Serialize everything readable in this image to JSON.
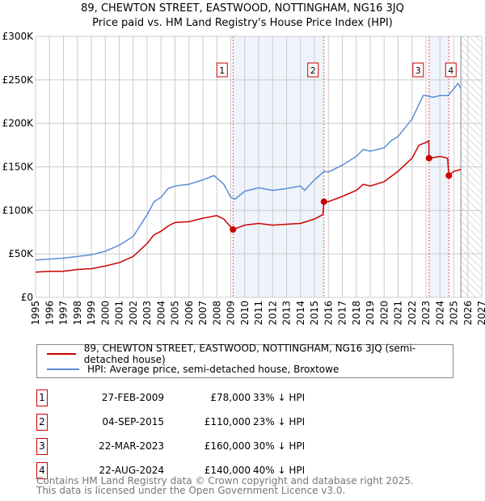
{
  "title": "89, CHEWTON STREET, EASTWOOD, NOTTINGHAM, NG16 3JQ",
  "subtitle": "Price paid vs. HM Land Registry's House Price Index (HPI)",
  "chart_data": {
    "type": "line",
    "xlim": [
      1995,
      2027
    ],
    "ylim": [
      0,
      300000
    ],
    "ytick_labels": [
      "£0",
      "£50K",
      "£100K",
      "£150K",
      "£200K",
      "£250K",
      "£300K"
    ],
    "yticks": [
      0,
      50000,
      100000,
      150000,
      200000,
      250000,
      300000
    ],
    "xticks": [
      1995,
      1996,
      1997,
      1998,
      1999,
      2000,
      2001,
      2002,
      2003,
      2004,
      2005,
      2006,
      2007,
      2008,
      2009,
      2010,
      2011,
      2012,
      2013,
      2014,
      2015,
      2016,
      2017,
      2018,
      2019,
      2020,
      2021,
      2022,
      2023,
      2024,
      2025,
      2026,
      2027
    ],
    "grid": true,
    "forecast_from": 2025.5,
    "shaded_ranges": [
      [
        2009.16,
        2015.68
      ],
      [
        2023.22,
        2024.64
      ]
    ],
    "series": [
      {
        "name": "89, CHEWTON STREET, EASTWOOD, NOTTINGHAM, NG16 3JQ (semi-detached house)",
        "color": "#cc0000",
        "x": [
          1995,
          1996,
          1997,
          1998,
          1999,
          2000,
          2001,
          2002,
          2003,
          2003.5,
          2004,
          2004.5,
          2005,
          2006,
          2007,
          2008,
          2008.5,
          2009.16,
          2010,
          2011,
          2012,
          2013,
          2014,
          2015,
          2015.6,
          2015.68,
          2016,
          2017,
          2018,
          2018.5,
          2019,
          2020,
          2021,
          2022,
          2022.5,
          2023,
          2023.2,
          2023.22,
          2024,
          2024.55,
          2024.64,
          2025,
          2025.5
        ],
        "y": [
          29000,
          30000,
          30000,
          32000,
          33000,
          36000,
          40000,
          47000,
          62000,
          72000,
          76000,
          82000,
          86000,
          87000,
          91000,
          94000,
          90000,
          78000,
          83000,
          85000,
          83000,
          84000,
          85000,
          90000,
          95000,
          110000,
          110000,
          116000,
          123000,
          130000,
          128000,
          133000,
          145000,
          160000,
          175000,
          178000,
          180000,
          160000,
          162000,
          160000,
          140000,
          145000,
          147000
        ]
      },
      {
        "name": "HPI: Average price, semi-detached house, Broxtowe",
        "color": "#5b8dd6",
        "x": [
          1995,
          1996,
          1997,
          1998,
          1999,
          2000,
          2001,
          2002,
          2003,
          2003.5,
          2004,
          2004.5,
          2005,
          2006,
          2007,
          2007.8,
          2008.5,
          2009,
          2009.3,
          2010,
          2011,
          2012,
          2013,
          2014,
          2014.3,
          2015,
          2015.7,
          2016,
          2017,
          2018,
          2018.5,
          2019,
          2020,
          2020.5,
          2021,
          2021.5,
          2022,
          2022.5,
          2022.8,
          2023,
          2023.5,
          2024,
          2024.6,
          2025,
          2025.3,
          2025.5
        ],
        "y": [
          43000,
          44000,
          45000,
          47000,
          49000,
          53000,
          60000,
          70000,
          95000,
          110000,
          115000,
          125000,
          128000,
          130000,
          135000,
          140000,
          130000,
          115000,
          113000,
          122000,
          126000,
          123000,
          125000,
          128000,
          123000,
          135000,
          145000,
          144000,
          152000,
          162000,
          170000,
          168000,
          172000,
          180000,
          185000,
          195000,
          205000,
          222000,
          232000,
          232000,
          230000,
          232000,
          232000,
          240000,
          246000,
          240000
        ]
      }
    ],
    "sales": [
      {
        "num": "1",
        "x": 2009.16,
        "y": 78000,
        "date": "27-FEB-2009",
        "price": "£78,000",
        "hpi": "33% ↓ HPI"
      },
      {
        "num": "2",
        "x": 2015.68,
        "y": 110000,
        "date": "04-SEP-2015",
        "price": "£110,000",
        "hpi": "23% ↓ HPI"
      },
      {
        "num": "3",
        "x": 2023.22,
        "y": 160000,
        "date": "22-MAR-2023",
        "price": "£160,000",
        "hpi": "30% ↓ HPI"
      },
      {
        "num": "4",
        "x": 2024.64,
        "y": 140000,
        "date": "22-AUG-2024",
        "price": "£140,000",
        "hpi": "40% ↓ HPI"
      }
    ]
  },
  "footer": [
    "Contains HM Land Registry data © Crown copyright and database right 2025.",
    "This data is licensed under the Open Government Licence v3.0."
  ]
}
